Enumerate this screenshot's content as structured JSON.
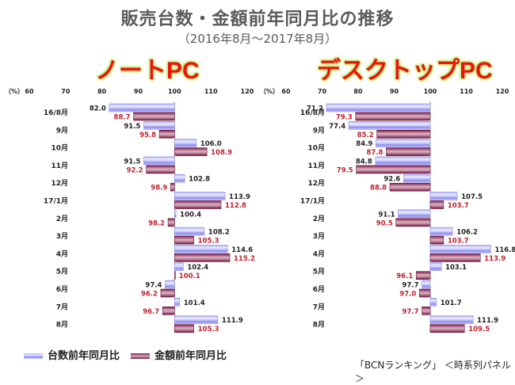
{
  "title": "販売台数・金額前年同月比の推移",
  "subtitle": "（2016年8月～2017年8月）",
  "source": "「BCNランキング」 ＜時系列パネル＞",
  "colors": {
    "units": "#9a9af2",
    "value": "#7a1a44",
    "value_label": "#c0202c",
    "units_label": "#222222"
  },
  "legend": [
    {
      "name": "台数前年同月比",
      "color": "#9a9af2"
    },
    {
      "name": "金額前年同月比",
      "color": "#7a1a44"
    }
  ],
  "chart_data": [
    {
      "type": "bar",
      "orientation": "horizontal",
      "title": "ノートPC",
      "unit_label": "（%）",
      "xlim": [
        60,
        120
      ],
      "baseline": 100,
      "xticks": [
        60,
        70,
        80,
        90,
        100,
        110,
        120
      ],
      "categories": [
        "16/8月",
        "9月",
        "10月",
        "11月",
        "12月",
        "17/1月",
        "2月",
        "3月",
        "4月",
        "5月",
        "6月",
        "7月",
        "8月"
      ],
      "series": [
        {
          "name": "台数前年同月比",
          "values": [
            82.0,
            91.5,
            106.0,
            91.5,
            102.8,
            113.9,
            100.4,
            108.2,
            114.6,
            102.4,
            97.4,
            101.4,
            111.9
          ]
        },
        {
          "name": "金額前年同月比",
          "values": [
            88.7,
            95.8,
            108.9,
            92.2,
            98.9,
            112.8,
            98.2,
            105.3,
            115.2,
            100.1,
            96.2,
            96.7,
            105.3
          ]
        }
      ],
      "legend": "bottom-left",
      "grid": false
    },
    {
      "type": "bar",
      "orientation": "horizontal",
      "title": "デスクトップPC",
      "unit_label": "（%）",
      "xlim": [
        60,
        120
      ],
      "baseline": 100,
      "xticks": [
        60,
        70,
        80,
        90,
        100,
        110,
        120
      ],
      "categories": [
        "16/8月",
        "9月",
        "10月",
        "11月",
        "12月",
        "17/1月",
        "2月",
        "3月",
        "4月",
        "5月",
        "6月",
        "7月",
        "8月"
      ],
      "series": [
        {
          "name": "台数前年同月比",
          "values": [
            71.2,
            77.4,
            84.9,
            84.8,
            92.6,
            107.5,
            91.1,
            106.2,
            116.8,
            103.1,
            97.7,
            101.7,
            111.9
          ]
        },
        {
          "name": "金額前年同月比",
          "values": [
            79.3,
            85.2,
            87.8,
            79.5,
            88.8,
            103.7,
            90.5,
            103.7,
            113.9,
            96.1,
            97.0,
            97.7,
            109.5
          ]
        }
      ],
      "legend": "bottom-left",
      "grid": false
    }
  ]
}
